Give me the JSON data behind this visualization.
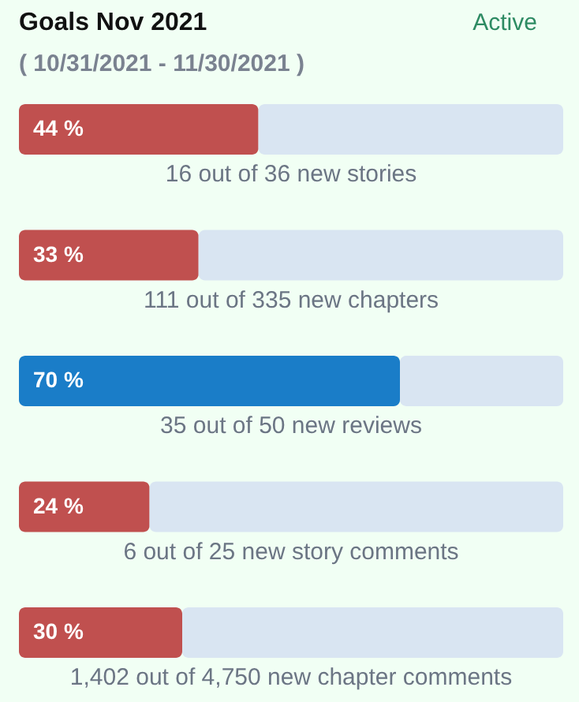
{
  "chart_data": {
    "type": "bar",
    "orientation": "horizontal",
    "stacked": true,
    "title": "Goals Nov 2021",
    "subtitle": "( 10/31/2021 - 11/30/2021 )",
    "annotations": [
      "Active"
    ],
    "categories": [
      "16 out of 36 new stories",
      "111 out of 335 new chapters",
      "35 out of 50 new reviews",
      "6 out of 25 new story comments",
      "1,402 out of 4,750 new chapter comments"
    ],
    "series": [
      {
        "colors": [
          "#c0504f",
          "#c0504f",
          "#1a7dc8",
          "#c0504f",
          "#c0504f"
        ],
        "values": [
          44,
          33,
          70,
          24,
          30
        ],
        "value_labels": [
          "44 %",
          "33 %",
          "70 %",
          "24 %",
          "30 %"
        ]
      },
      {
        "color": "#d9e5f2",
        "values": [
          56,
          67,
          30,
          76,
          70
        ]
      }
    ],
    "xlim": [
      0,
      100
    ],
    "tick_labels": false
  }
}
